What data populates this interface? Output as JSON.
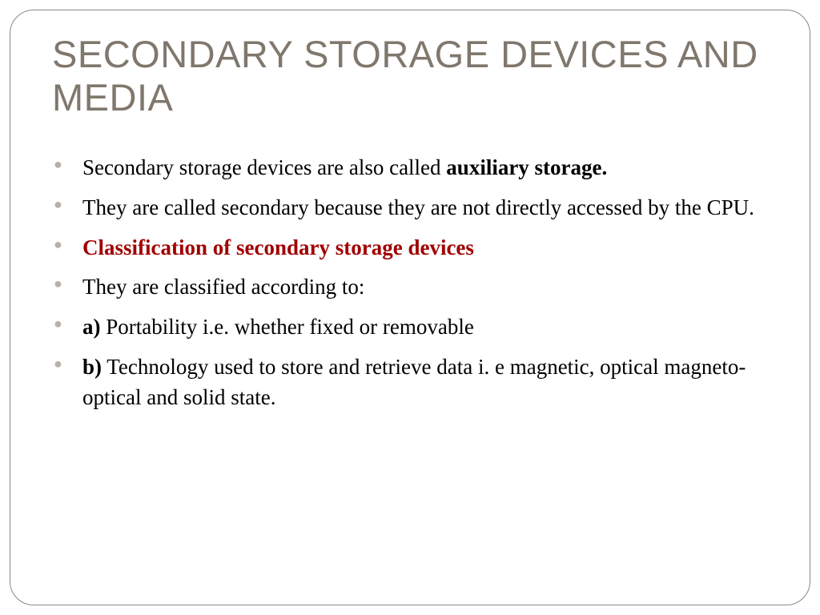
{
  "title": "SECONDARY STORAGE DEVICES AND MEDIA",
  "bullets": [
    {
      "pre": "Secondary storage devices are also called ",
      "bold": "auxiliary storage.",
      "post": ""
    },
    {
      "pre": "They are called secondary because they are not directly accessed by the CPU.",
      "bold": "",
      "post": ""
    },
    {
      "pre": "",
      "redbold": "Classification of secondary storage devices",
      "post": ""
    },
    {
      "pre": "They are classified according to:",
      "bold": "",
      "post": ""
    },
    {
      "pre": "",
      "bold": "a)",
      "post": "  Portability i.e. whether fixed or removable"
    },
    {
      "pre": "",
      "bold": "b)",
      "post": "  Technology used to store and retrieve data i. e magnetic, optical magneto-optical and solid state."
    }
  ],
  "colors": {
    "title": "#80776d",
    "bullet_marker": "#b9b1a7",
    "body_text": "#000000",
    "red_text": "#a00000",
    "border": "#888888",
    "background": "#ffffff"
  },
  "typography": {
    "title_fontsize": 47,
    "body_fontsize": 27,
    "title_font": "Arial",
    "body_font": "Georgia"
  }
}
